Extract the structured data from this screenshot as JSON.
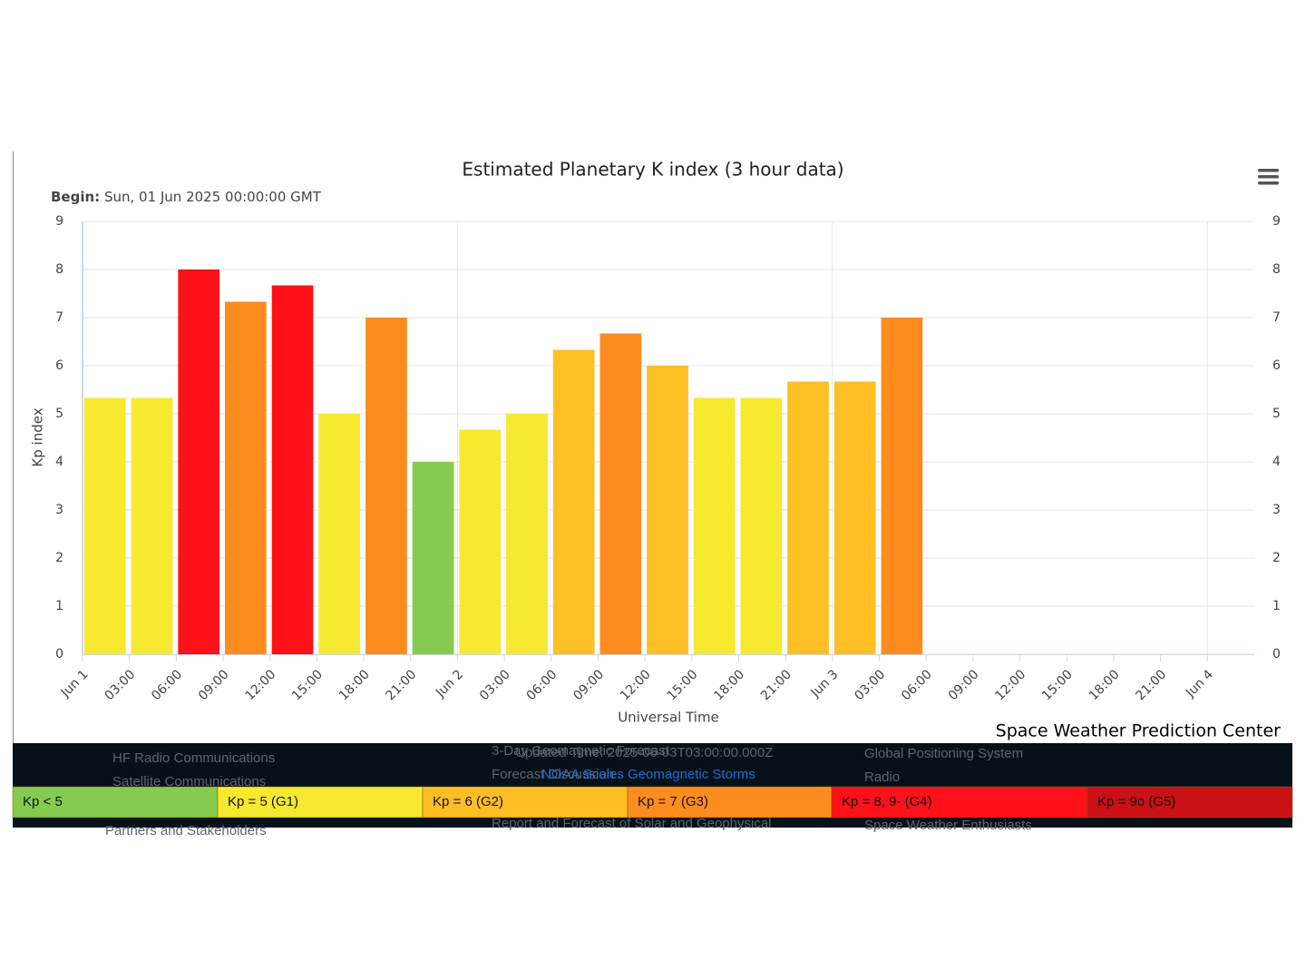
{
  "chart_data": {
    "type": "bar",
    "title": "Estimated Planetary K index (3 hour data)",
    "subtitle_label": "Begin:",
    "subtitle": "Sun, 01 Jun 2025 00:00:00 GMT",
    "x_label": "Universal Time",
    "y_label": "Kp index",
    "credits": "Space Weather Prediction Center",
    "categories": [
      "Jun 1",
      "03:00",
      "06:00",
      "09:00",
      "12:00",
      "15:00",
      "18:00",
      "21:00",
      "Jun 2",
      "03:00",
      "06:00",
      "09:00",
      "12:00",
      "15:00",
      "18:00",
      "21:00",
      "Jun 3",
      "03:00",
      "06:00",
      "09:00",
      "12:00",
      "15:00",
      "18:00",
      "21:00",
      "Jun 4"
    ],
    "values": [
      5.33,
      5.33,
      8,
      7.33,
      7.67,
      5,
      7,
      4,
      4.67,
      5,
      6.33,
      6.67,
      6,
      5.33,
      5.33,
      5.67,
      5.67,
      7,
      null,
      null,
      null,
      null,
      null,
      null,
      null
    ],
    "colors": [
      "#f7e92f",
      "#f7e92f",
      "#fe1119",
      "#fd8c1e",
      "#fe1119",
      "#f7e92f",
      "#fd8c1e",
      "#84cb4f",
      "#f7e92f",
      "#f7e92f",
      "#fdc024",
      "#fd8c1e",
      "#fdc024",
      "#f7e92f",
      "#f7e92f",
      "#fdc024",
      "#fdc024",
      "#fd8c1e",
      null,
      null,
      null,
      null,
      null,
      null,
      null
    ],
    "ylim": [
      0,
      9
    ],
    "yticks": [
      0,
      1,
      2,
      3,
      4,
      5,
      6,
      7,
      8,
      9
    ],
    "y2lim": [
      0,
      9
    ],
    "y2ticks": [
      0,
      1,
      2,
      3,
      4,
      5,
      6,
      7,
      8,
      9
    ],
    "grid": true
  },
  "background_links": {
    "left": [
      "HF Radio Communications",
      "Satellite Communications",
      "Partners and Stakeholders"
    ],
    "center": [
      "3-Day Geomagnetic Forecast",
      "Updated Time: 2025-06-03T03:00:00.000Z",
      "Forecast Discussion",
      "NOAA Scales Geomagnetic Storms",
      "Report and Forecast of Solar and Geophysical"
    ],
    "right": [
      "Global Positioning System",
      "Radio",
      "Space Weather Enthusiasts"
    ]
  },
  "legend": [
    {
      "label": "Kp < 5",
      "color": "#84cb4f"
    },
    {
      "label": "Kp = 5 (G1)",
      "color": "#f7e92f"
    },
    {
      "label": "Kp = 6 (G2)",
      "color": "#fdbe24"
    },
    {
      "label": "Kp = 7 (G3)",
      "color": "#fd8c1e"
    },
    {
      "label": "Kp = 8, 9- (G4)",
      "color": "#fe1119"
    },
    {
      "label": "Kp = 9o (G5)",
      "color": "#c91116"
    }
  ]
}
